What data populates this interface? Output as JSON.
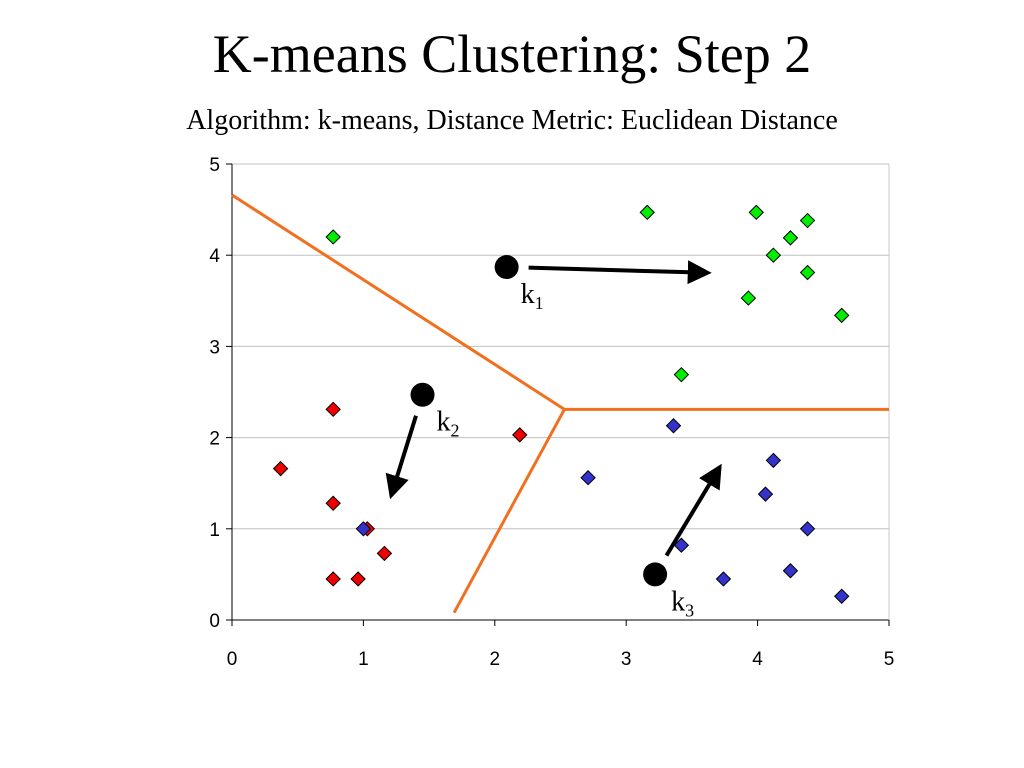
{
  "slide": {
    "title": "K-means Clustering: Step 2",
    "subtitle": "Algorithm: k-means, Distance Metric: Euclidean Distance"
  },
  "chart_data": {
    "type": "scatter",
    "xlim": [
      0,
      5
    ],
    "ylim": [
      0,
      5
    ],
    "x_ticks": [
      "0",
      "1",
      "2",
      "3",
      "4",
      "5"
    ],
    "y_ticks": [
      "0",
      "1",
      "2",
      "3",
      "4",
      "5"
    ],
    "grid": "horizontal",
    "colors": {
      "cluster1": "#00ee00",
      "cluster2": "#ee0000",
      "cluster3": "#3333cc",
      "boundary": "#f07020",
      "centroid": "#000000",
      "gridline": "#c0c0c0"
    },
    "series": [
      {
        "color_key": "cluster1",
        "points": [
          [
            0.77,
            4.2
          ],
          [
            3.16,
            4.47
          ],
          [
            3.99,
            4.47
          ],
          [
            4.38,
            4.38
          ],
          [
            4.25,
            4.19
          ],
          [
            4.12,
            4.0
          ],
          [
            4.38,
            3.81
          ],
          [
            3.93,
            3.53
          ],
          [
            4.64,
            3.34
          ],
          [
            3.42,
            2.69
          ]
        ]
      },
      {
        "color_key": "cluster2",
        "points": [
          [
            0.77,
            2.31
          ],
          [
            2.19,
            2.03
          ],
          [
            0.37,
            1.66
          ],
          [
            0.77,
            1.28
          ],
          [
            1.03,
            1.0
          ],
          [
            1.16,
            0.73
          ],
          [
            0.77,
            0.45
          ],
          [
            0.96,
            0.45
          ]
        ]
      },
      {
        "color_key": "cluster3",
        "points": [
          [
            3.36,
            2.13
          ],
          [
            4.12,
            1.75
          ],
          [
            2.71,
            1.56
          ],
          [
            4.06,
            1.38
          ],
          [
            4.38,
            1.0
          ],
          [
            1.0,
            1.0
          ],
          [
            3.42,
            0.82
          ],
          [
            4.25,
            0.54
          ],
          [
            3.74,
            0.45
          ],
          [
            4.64,
            0.26
          ]
        ]
      }
    ],
    "boundaries": [
      [
        [
          0.0,
          4.66
        ],
        [
          2.53,
          2.31
        ]
      ],
      [
        [
          2.53,
          2.31
        ],
        [
          5.0,
          2.31
        ]
      ],
      [
        [
          2.53,
          2.31
        ],
        [
          1.69,
          0.08
        ]
      ]
    ],
    "centroids": [
      {
        "name": "k",
        "sub": "1",
        "position": [
          2.09,
          3.87
        ],
        "moves_to": [
          3.56,
          3.81
        ]
      },
      {
        "name": "k",
        "sub": "2",
        "position": [
          1.45,
          2.47
        ],
        "moves_to": [
          1.23,
          1.45
        ]
      },
      {
        "name": "k",
        "sub": "3",
        "position": [
          3.22,
          0.5
        ],
        "moves_to": [
          3.68,
          1.6
        ]
      }
    ]
  }
}
